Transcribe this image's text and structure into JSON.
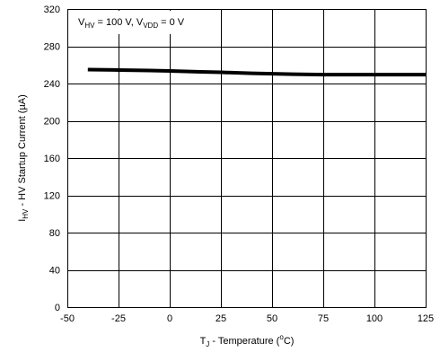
{
  "chart_data": {
    "type": "line",
    "annotation": {
      "v_hv_main": "V",
      "v_hv_sub": "HV",
      "v_hv_val": " = 100 V,  ",
      "v_vdd_main": "V",
      "v_vdd_sub": "VDD",
      "v_vdd_val": " = 0 V"
    },
    "xlabel": {
      "main": "T",
      "sub": "J",
      "text": " - Temperature  (",
      "sup": "o",
      "unit": "C)"
    },
    "ylabel": {
      "main": "I",
      "sub": "HV",
      "text": " - HV Startup Current  (µA)"
    },
    "xlim": [
      -50,
      125
    ],
    "ylim": [
      0,
      320
    ],
    "x_ticks": [
      "-50",
      "-25",
      "0",
      "25",
      "50",
      "75",
      "100",
      "125"
    ],
    "y_ticks": [
      "0",
      "40",
      "80",
      "120",
      "160",
      "200",
      "240",
      "280",
      "320"
    ],
    "grid": true,
    "line_color": "#000000",
    "series": [
      {
        "x": [
          -40,
          -25,
          -10,
          0,
          15,
          25,
          40,
          50,
          60,
          75,
          90,
          100,
          110,
          125
        ],
        "values": [
          255,
          254.5,
          254,
          253.5,
          252.5,
          252,
          251,
          250.5,
          250,
          249.5,
          249.5,
          249.5,
          249.5,
          249.5
        ]
      }
    ]
  }
}
